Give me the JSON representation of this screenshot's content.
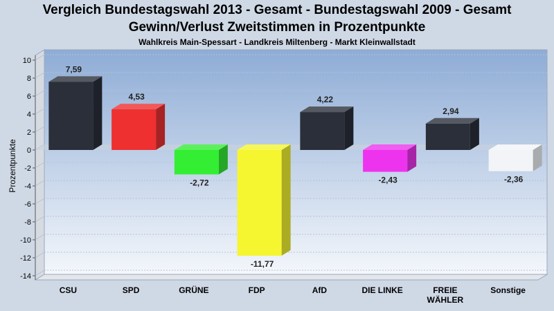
{
  "chart_data": {
    "type": "bar",
    "title": "Vergleich Bundestagswahl 2013 - Gesamt - Bundestagswahl 2009 - Gesamt",
    "subtitle": "Gewinn/Verlust Zweitstimmen in Prozentpunkte",
    "subtitle2": "Wahlkreis Main-Spessart - Landkreis Miltenberg - Markt Kleinwallstadt",
    "ylabel": "Prozentpunkte",
    "ylim": [
      -14,
      10
    ],
    "yticks": [
      "10",
      "8",
      "6",
      "4",
      "2",
      "0",
      "-2",
      "-4",
      "-6",
      "-8",
      "-10",
      "-12",
      "-14"
    ],
    "categories": [
      "CSU",
      "SPD",
      "GRÜNE",
      "FDP",
      "AfD",
      "DIE LINKE",
      "FREIE WÄHLER",
      "Sonstige"
    ],
    "category_lines": [
      [
        "CSU"
      ],
      [
        "SPD"
      ],
      [
        "GRÜNE"
      ],
      [
        "FDP"
      ],
      [
        "AfD"
      ],
      [
        "DIE LINKE"
      ],
      [
        "FREIE",
        "WÄHLER"
      ],
      [
        "Sonstige"
      ]
    ],
    "values": [
      7.59,
      4.53,
      -2.72,
      -11.77,
      4.22,
      -2.43,
      2.94,
      -2.36
    ],
    "value_labels": [
      "7,59",
      "4,53",
      "-2,72",
      "-11,77",
      "4,22",
      "-2,43",
      "2,94",
      "-2,36"
    ],
    "colors": [
      "#2b2f3a",
      "#ee3030",
      "#33ee33",
      "#f5f530",
      "#2b2f3a",
      "#ee33ee",
      "#2b2f3a",
      "#f2f4f8"
    ],
    "grid": true,
    "legend": "none"
  }
}
